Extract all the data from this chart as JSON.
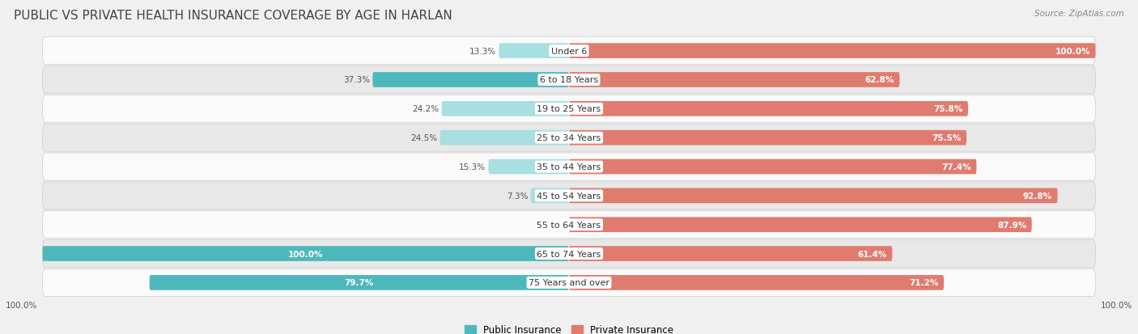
{
  "title": "PUBLIC VS PRIVATE HEALTH INSURANCE COVERAGE BY AGE IN HARLAN",
  "source": "Source: ZipAtlas.com",
  "age_groups": [
    "Under 6",
    "6 to 18 Years",
    "19 to 25 Years",
    "25 to 34 Years",
    "35 to 44 Years",
    "45 to 54 Years",
    "55 to 64 Years",
    "65 to 74 Years",
    "75 Years and over"
  ],
  "public_values": [
    13.3,
    37.3,
    24.2,
    24.5,
    15.3,
    7.3,
    0.0,
    100.0,
    79.7
  ],
  "private_values": [
    100.0,
    62.8,
    75.8,
    75.5,
    77.4,
    92.8,
    87.9,
    61.4,
    71.2
  ],
  "public_color": "#4db8bc",
  "public_color_light": "#a8dfe0",
  "private_color": "#e07b6f",
  "private_color_light": "#f0b8b0",
  "public_label": "Public Insurance",
  "private_label": "Private Insurance",
  "bar_height": 0.52,
  "max_value": 100.0,
  "background_color": "#f0f0f0",
  "row_bg_light": "#fafafa",
  "row_bg_dark": "#e8e8e8",
  "title_fontsize": 11,
  "label_fontsize": 8.0,
  "value_fontsize": 7.5
}
